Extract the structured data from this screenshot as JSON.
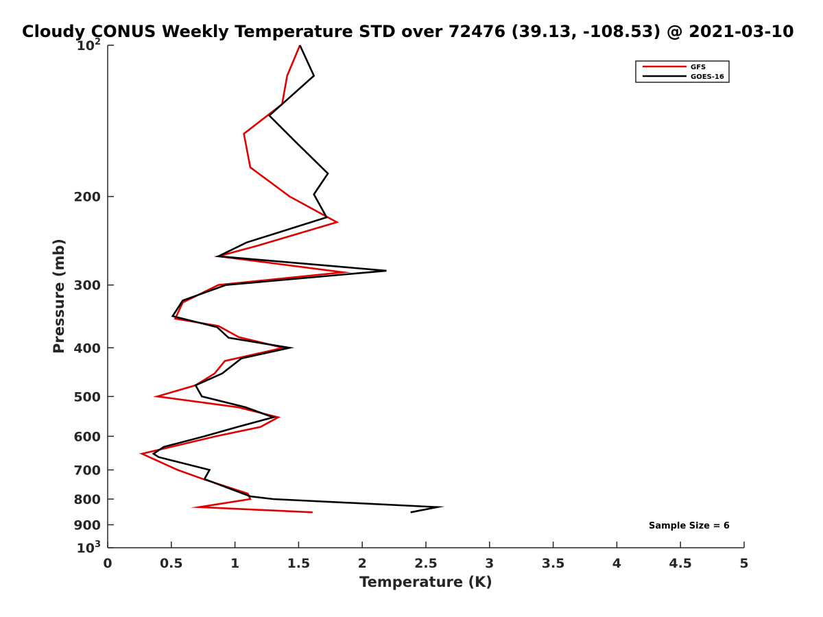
{
  "chart_data": {
    "type": "line",
    "title": "Cloudy CONUS Weekly Temperature STD over 72476 (39.13, -108.53) @ 2021-03-10",
    "xlabel": "Temperature (K)",
    "ylabel": "Pressure (mb)",
    "xlim": [
      0,
      5
    ],
    "ylim": [
      100,
      1000
    ],
    "y_scale": "log",
    "y_reversed": true,
    "x_ticks": [
      "0",
      "0.5",
      "1",
      "1.5",
      "2",
      "2.5",
      "3",
      "3.5",
      "4",
      "4.5",
      "5"
    ],
    "y_ticks": [
      {
        "value": 100,
        "base": "10",
        "exp": "2"
      },
      {
        "value": 200,
        "label": "200"
      },
      {
        "value": 300,
        "label": "300"
      },
      {
        "value": 400,
        "label": "400"
      },
      {
        "value": 500,
        "label": "500"
      },
      {
        "value": 600,
        "label": "600"
      },
      {
        "value": 700,
        "label": "700"
      },
      {
        "value": 800,
        "label": "800"
      },
      {
        "value": 900,
        "label": "900"
      },
      {
        "value": 1000,
        "base": "10",
        "exp": "3"
      }
    ],
    "grid": false,
    "legend_position": "top-right",
    "annotation": "Sample Size = 6",
    "series": [
      {
        "name": "GFS",
        "color": "#e00000",
        "points": [
          [
            1.51,
            100
          ],
          [
            1.41,
            115
          ],
          [
            1.37,
            131
          ],
          [
            1.07,
            150
          ],
          [
            1.12,
            175
          ],
          [
            1.43,
            200
          ],
          [
            1.8,
            225
          ],
          [
            1.19,
            250
          ],
          [
            0.87,
            263
          ],
          [
            1.85,
            283
          ],
          [
            0.87,
            300
          ],
          [
            0.59,
            325
          ],
          [
            0.53,
            350
          ],
          [
            0.87,
            362
          ],
          [
            1.03,
            381
          ],
          [
            1.38,
            400
          ],
          [
            0.92,
            425
          ],
          [
            0.84,
            450
          ],
          [
            0.69,
            475
          ],
          [
            0.39,
            500
          ],
          [
            1.02,
            525
          ],
          [
            1.34,
            550
          ],
          [
            1.2,
            575
          ],
          [
            0.85,
            600
          ],
          [
            0.27,
            650
          ],
          [
            0.55,
            700
          ],
          [
            0.75,
            730
          ],
          [
            1.1,
            780
          ],
          [
            1.12,
            800
          ],
          [
            0.72,
            830
          ],
          [
            1.61,
            850
          ]
        ]
      },
      {
        "name": "GOES-16",
        "color": "#000000",
        "points": [
          [
            1.51,
            100
          ],
          [
            1.62,
            115
          ],
          [
            1.27,
            138
          ],
          [
            1.48,
            156
          ],
          [
            1.73,
            180
          ],
          [
            1.62,
            198
          ],
          [
            1.72,
            220
          ],
          [
            1.09,
            247
          ],
          [
            0.87,
            263
          ],
          [
            2.19,
            281
          ],
          [
            0.93,
            300
          ],
          [
            0.59,
            322
          ],
          [
            0.51,
            346
          ],
          [
            0.86,
            364
          ],
          [
            0.95,
            382
          ],
          [
            1.43,
            400
          ],
          [
            1.05,
            420
          ],
          [
            0.9,
            450
          ],
          [
            0.69,
            475
          ],
          [
            0.74,
            500
          ],
          [
            1.08,
            525
          ],
          [
            1.3,
            550
          ],
          [
            1.02,
            575
          ],
          [
            0.76,
            600
          ],
          [
            0.44,
            630
          ],
          [
            0.36,
            650
          ],
          [
            0.4,
            660
          ],
          [
            0.8,
            700
          ],
          [
            0.76,
            730
          ],
          [
            1.12,
            790
          ],
          [
            1.3,
            800
          ],
          [
            2.59,
            830
          ],
          [
            2.38,
            850
          ]
        ]
      }
    ]
  }
}
